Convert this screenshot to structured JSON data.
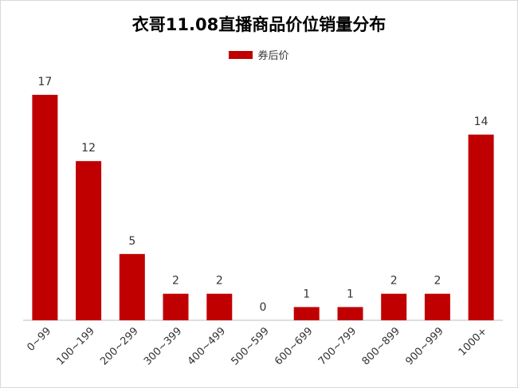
{
  "chart_data": {
    "type": "bar",
    "title": "衣哥11.08直播商品价位销量分布",
    "categories": [
      "0~99",
      "100~199",
      "200~299",
      "300~399",
      "400~499",
      "500~599",
      "600~699",
      "700~799",
      "800~899",
      "900~999",
      "1000+"
    ],
    "series": [
      {
        "name": "券后价",
        "values": [
          17,
          12,
          5,
          2,
          2,
          0,
          1,
          1,
          2,
          2,
          14
        ],
        "color": "#c00000"
      }
    ],
    "xlabel": "",
    "ylabel": "",
    "ylim": [
      0,
      17
    ],
    "grid": false,
    "legend_position": "top-center",
    "data_labels": true
  }
}
